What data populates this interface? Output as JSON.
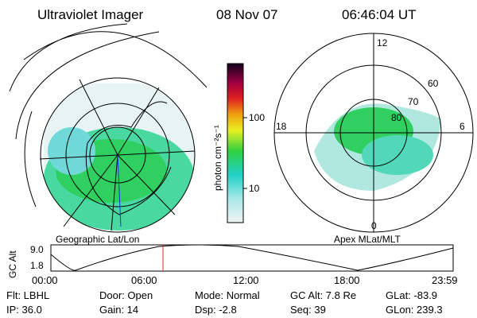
{
  "header": {
    "title": "Ultraviolet Imager",
    "date": "08 Nov 07",
    "time": "06:46:04 UT"
  },
  "left_panel": {
    "caption": "Geographic Lat/Lon"
  },
  "right_panel": {
    "caption": "Apex MLat/MLT",
    "mlt_labels": [
      "12",
      "18",
      "6",
      "0"
    ],
    "lat_labels": [
      "60",
      "70",
      "80"
    ]
  },
  "colorbar": {
    "label": "photon cm⁻²s⁻¹",
    "ticks": [
      "100",
      "10"
    ]
  },
  "altitude_strip": {
    "label": "GC Alt",
    "yticks": [
      "9.0",
      "1.8"
    ],
    "xticks": [
      "00:00",
      "06:00",
      "12:00",
      "18:00",
      "23:59"
    ]
  },
  "info": {
    "rows": [
      [
        "Flt: LBHL",
        "Door: Open",
        "Mode: Normal",
        "GC Alt: 7.8 Re",
        "GLat: -83.9"
      ],
      [
        "IP: 36.0",
        "Gain: 14",
        "Dsp:   -2.8",
        "Seq: 39",
        "GLon: 239.3"
      ]
    ]
  }
}
